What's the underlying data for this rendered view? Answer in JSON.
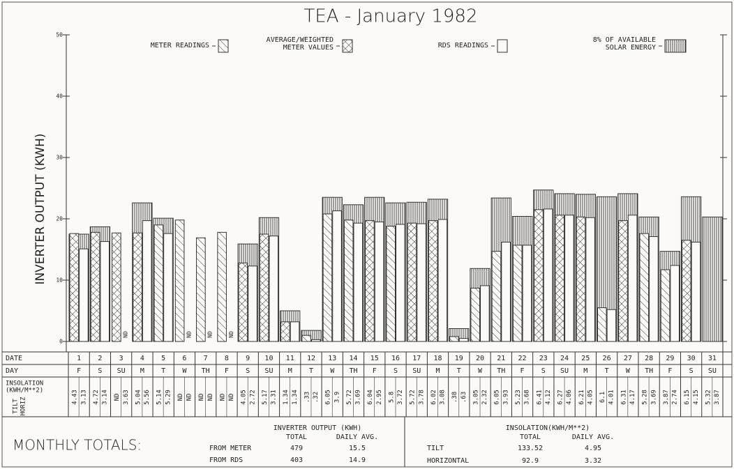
{
  "chart_data": {
    "type": "bar",
    "title": "TEA - January 1982",
    "ylabel": "INVERTER OUTPUT (KWH)",
    "ylim": [
      0,
      50
    ],
    "yticks": [
      0,
      10,
      20,
      30,
      40,
      50
    ],
    "categories": [
      "1",
      "2",
      "3",
      "4",
      "5",
      "6",
      "7",
      "8",
      "9",
      "10",
      "11",
      "12",
      "13",
      "14",
      "15",
      "16",
      "17",
      "18",
      "19",
      "20",
      "21",
      "22",
      "23",
      "24",
      "25",
      "26",
      "27",
      "28",
      "29",
      "30",
      "31"
    ],
    "days": [
      "F",
      "S",
      "SU",
      "M",
      "T",
      "W",
      "TH",
      "F",
      "S",
      "SU",
      "M",
      "T",
      "W",
      "TH",
      "F",
      "S",
      "SU",
      "M",
      "T",
      "W",
      "TH",
      "F",
      "S",
      "SU",
      "M",
      "T",
      "W",
      "TH",
      "F",
      "S",
      "SU"
    ],
    "series": [
      {
        "name": "METER READINGS",
        "pattern": "diagonal",
        "slot": "left",
        "values": [
          null,
          null,
          null,
          null,
          19,
          19.8,
          16.9,
          17.8,
          null,
          null,
          null,
          1.0,
          20.8,
          19.8,
          null,
          18.8,
          null,
          null,
          0.8,
          8.7,
          14.7,
          15.7,
          null,
          null,
          null,
          5.5,
          null,
          17.6,
          11.7,
          null,
          null
        ]
      },
      {
        "name": "AVERAGE/WEIGHTED METER VALUES",
        "pattern": "crosshatch",
        "slot": "left",
        "values": [
          17.6,
          17.8,
          17.7,
          17.7,
          null,
          null,
          null,
          null,
          12.8,
          17.5,
          3.2,
          null,
          null,
          null,
          19.7,
          null,
          19.3,
          19.7,
          null,
          null,
          null,
          null,
          21.5,
          20.6,
          20.3,
          null,
          19.7,
          null,
          null,
          16.5,
          null
        ]
      },
      {
        "name": "RDS READINGS",
        "pattern": "empty",
        "slot": "right",
        "values": [
          15.1,
          16.3,
          null,
          19.7,
          17.6,
          null,
          null,
          null,
          12.3,
          17.2,
          3.2,
          0.3,
          21.3,
          19.3,
          19.5,
          19.1,
          19.2,
          19.9,
          0.5,
          9.1,
          16.2,
          15.7,
          21.6,
          20.6,
          20.2,
          5.2,
          20.6,
          17.1,
          12.4,
          16.2,
          null
        ],
        "value_labels": [
          null,
          null,
          "ND",
          null,
          null,
          "ND",
          "ND",
          "ND",
          null,
          null,
          null,
          null,
          null,
          null,
          null,
          null,
          null,
          null,
          null,
          null,
          null,
          null,
          null,
          null,
          null,
          null,
          null,
          null,
          null,
          null,
          null
        ]
      },
      {
        "name": "8% OF AVAILABLE SOLAR ENERGY",
        "pattern": "vertical",
        "slot": "box",
        "values": [
          17.5,
          18.7,
          null,
          22.6,
          20.1,
          null,
          null,
          null,
          15.9,
          20.2,
          5.0,
          1.8,
          23.5,
          22.3,
          23.5,
          22.6,
          22.7,
          23.2,
          2.1,
          11.9,
          23.4,
          20.4,
          24.7,
          24.1,
          24.0,
          23.6,
          24.1,
          20.3,
          14.7,
          23.6,
          20.3
        ]
      }
    ],
    "table": {
      "date_label": "DATE",
      "day_label": "DAY",
      "insolation_label": [
        "INSOLATION",
        "(KWH/M**2)"
      ],
      "tilt_horiz_label": [
        "TILT",
        "HORIZ"
      ],
      "tilt": [
        "4.43",
        "4.72",
        "ND",
        "5.04",
        "5.14",
        "ND",
        "ND",
        "ND",
        "4.05",
        "5.17",
        "1.34",
        ".33",
        "6.05",
        "5.72",
        "6.04",
        "5.8",
        "5.72",
        "6.02",
        ".38",
        "3.05",
        "6.05",
        "5.23",
        "6.41",
        "6.27",
        "6.21",
        "6.1",
        "6.31",
        "5.28",
        "3.87",
        "6.15",
        "5.32"
      ],
      "horiz": [
        "3.13",
        "3.14",
        "3.63",
        "5.56",
        "5.29",
        "ND",
        "ND",
        "ND",
        "2.72",
        "3.31",
        "1.34",
        ".32",
        "3.9",
        "3.69",
        "2.95",
        "3.72",
        "3.78",
        "3.08",
        ".63",
        "2.32",
        "3.93",
        "3.68",
        "4.12",
        "4.06",
        "4.05",
        "4.01",
        "4.17",
        "3.69",
        "2.74",
        "4.15",
        "3.87"
      ]
    },
    "totals": {
      "label": "MONTHLY TOTALS:",
      "inverter": {
        "title": "INVERTER OUTPUT (KWH)",
        "columns": [
          "TOTAL",
          "DAILY AVG."
        ],
        "rows": [
          {
            "label": "FROM METER",
            "total": 479,
            "avg": 15.5
          },
          {
            "label": "FROM RDS",
            "total": 403,
            "avg": 14.9
          }
        ]
      },
      "insolation": {
        "title": "INSOLATION(KWH/M**2)",
        "columns": [
          "TOTAL",
          "DAILY AVG."
        ],
        "rows": [
          {
            "label": "TILT",
            "total": 133.52,
            "avg": 4.95
          },
          {
            "label": "HORIZONTAL",
            "total": 92.9,
            "avg": 3.32
          }
        ]
      }
    }
  }
}
